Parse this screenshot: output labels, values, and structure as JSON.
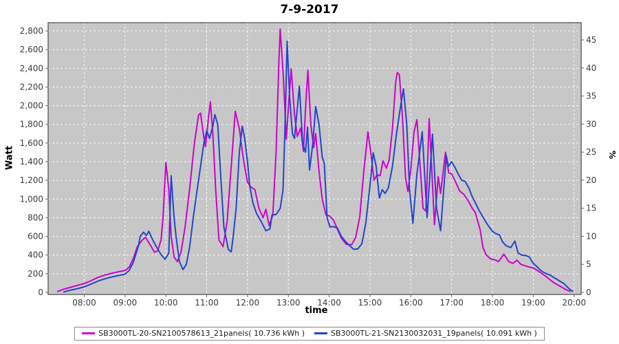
{
  "title": "7-9-2017",
  "chart_data": {
    "type": "line",
    "title": "7-9-2017",
    "xlabel": "time",
    "ylabel_left": "Watt",
    "ylabel_right": "%",
    "plot_bg": "#c7c7c7",
    "grid_color": "#ffffff",
    "border_color": "#666666",
    "tick_text_color": "#3b3b3b",
    "y_left_range": [
      0,
      2800
    ],
    "y_right_range": [
      0,
      45
    ],
    "x_domain_hours": [
      7.1,
      20.17
    ],
    "x_ticks": [
      [
        8,
        "08:00"
      ],
      [
        9,
        "09:00"
      ],
      [
        10,
        "10:00"
      ],
      [
        11,
        "11:00"
      ],
      [
        12,
        "12:00"
      ],
      [
        13,
        "13:00"
      ],
      [
        14,
        "14:00"
      ],
      [
        15,
        "15:00"
      ],
      [
        16,
        "16:00"
      ],
      [
        17,
        "17:00"
      ],
      [
        18,
        "18:00"
      ],
      [
        19,
        "19:00"
      ],
      [
        20,
        "20:00"
      ]
    ],
    "y_ticks_left": [
      [
        0,
        "0"
      ],
      [
        200,
        "200"
      ],
      [
        400,
        "400"
      ],
      [
        600,
        "600"
      ],
      [
        800,
        "800"
      ],
      [
        1000,
        "1,000"
      ],
      [
        1200,
        "1,200"
      ],
      [
        1400,
        "1,400"
      ],
      [
        1600,
        "1,600"
      ],
      [
        1800,
        "1,800"
      ],
      [
        2000,
        "2,000"
      ],
      [
        2200,
        "2,200"
      ],
      [
        2400,
        "2,400"
      ],
      [
        2600,
        "2,600"
      ],
      [
        2800,
        "2,800"
      ]
    ],
    "y_ticks_right": [
      [
        0,
        "0"
      ],
      [
        5,
        "5"
      ],
      [
        10,
        "10"
      ],
      [
        15,
        "15"
      ],
      [
        20,
        "20"
      ],
      [
        25,
        "25"
      ],
      [
        30,
        "30"
      ],
      [
        35,
        "35"
      ],
      [
        40,
        "40"
      ],
      [
        45,
        "45"
      ]
    ],
    "series": [
      {
        "name": "SB3000TL-20-SN2100578613_21panels( 10.736 kWh )",
        "color": "#cc00cc",
        "points": [
          [
            7.35,
            10
          ],
          [
            7.5,
            35
          ],
          [
            7.67,
            55
          ],
          [
            7.83,
            75
          ],
          [
            8.0,
            95
          ],
          [
            8.17,
            125
          ],
          [
            8.33,
            160
          ],
          [
            8.5,
            185
          ],
          [
            8.67,
            205
          ],
          [
            8.83,
            220
          ],
          [
            9.0,
            235
          ],
          [
            9.1,
            270
          ],
          [
            9.2,
            360
          ],
          [
            9.3,
            490
          ],
          [
            9.42,
            560
          ],
          [
            9.5,
            590
          ],
          [
            9.6,
            520
          ],
          [
            9.72,
            430
          ],
          [
            9.8,
            445
          ],
          [
            9.88,
            560
          ],
          [
            9.93,
            800
          ],
          [
            10.0,
            1390
          ],
          [
            10.07,
            1100
          ],
          [
            10.13,
            600
          ],
          [
            10.2,
            380
          ],
          [
            10.28,
            330
          ],
          [
            10.37,
            430
          ],
          [
            10.47,
            700
          ],
          [
            10.58,
            1100
          ],
          [
            10.7,
            1600
          ],
          [
            10.8,
            1900
          ],
          [
            10.85,
            1920
          ],
          [
            10.92,
            1690
          ],
          [
            10.97,
            1560
          ],
          [
            11.05,
            1900
          ],
          [
            11.09,
            2040
          ],
          [
            11.15,
            1700
          ],
          [
            11.22,
            1100
          ],
          [
            11.3,
            560
          ],
          [
            11.4,
            490
          ],
          [
            11.5,
            760
          ],
          [
            11.6,
            1350
          ],
          [
            11.7,
            1940
          ],
          [
            11.8,
            1750
          ],
          [
            11.9,
            1420
          ],
          [
            12.0,
            1180
          ],
          [
            12.08,
            1130
          ],
          [
            12.18,
            1100
          ],
          [
            12.28,
            900
          ],
          [
            12.38,
            800
          ],
          [
            12.45,
            890
          ],
          [
            12.53,
            715
          ],
          [
            12.62,
            830
          ],
          [
            12.7,
            1500
          ],
          [
            12.77,
            2500
          ],
          [
            12.8,
            2820
          ],
          [
            12.88,
            2300
          ],
          [
            12.95,
            1640
          ],
          [
            13.02,
            2100
          ],
          [
            13.07,
            2395
          ],
          [
            13.15,
            1900
          ],
          [
            13.22,
            1670
          ],
          [
            13.3,
            1760
          ],
          [
            13.37,
            1510
          ],
          [
            13.43,
            2050
          ],
          [
            13.48,
            2380
          ],
          [
            13.55,
            1800
          ],
          [
            13.62,
            1550
          ],
          [
            13.67,
            1700
          ],
          [
            13.75,
            1300
          ],
          [
            13.83,
            1000
          ],
          [
            13.92,
            830
          ],
          [
            14.0,
            820
          ],
          [
            14.1,
            780
          ],
          [
            14.2,
            680
          ],
          [
            14.3,
            580
          ],
          [
            14.42,
            515
          ],
          [
            14.55,
            510
          ],
          [
            14.65,
            590
          ],
          [
            14.75,
            810
          ],
          [
            14.85,
            1300
          ],
          [
            14.95,
            1720
          ],
          [
            15.02,
            1500
          ],
          [
            15.1,
            1200
          ],
          [
            15.17,
            1260
          ],
          [
            15.25,
            1250
          ],
          [
            15.32,
            1410
          ],
          [
            15.4,
            1330
          ],
          [
            15.47,
            1420
          ],
          [
            15.55,
            1750
          ],
          [
            15.63,
            2250
          ],
          [
            15.67,
            2355
          ],
          [
            15.72,
            2330
          ],
          [
            15.8,
            1850
          ],
          [
            15.87,
            1230
          ],
          [
            15.93,
            1080
          ],
          [
            16.0,
            1320
          ],
          [
            16.08,
            1720
          ],
          [
            16.15,
            1850
          ],
          [
            16.22,
            1400
          ],
          [
            16.3,
            900
          ],
          [
            16.37,
            870
          ],
          [
            16.45,
            1860
          ],
          [
            16.52,
            1250
          ],
          [
            16.58,
            725
          ],
          [
            16.67,
            1240
          ],
          [
            16.73,
            1060
          ],
          [
            16.85,
            1500
          ],
          [
            16.93,
            1280
          ],
          [
            17.0,
            1270
          ],
          [
            17.1,
            1180
          ],
          [
            17.2,
            1085
          ],
          [
            17.3,
            1050
          ],
          [
            17.4,
            985
          ],
          [
            17.5,
            905
          ],
          [
            17.58,
            855
          ],
          [
            17.7,
            670
          ],
          [
            17.77,
            480
          ],
          [
            17.85,
            400
          ],
          [
            17.95,
            360
          ],
          [
            18.05,
            350
          ],
          [
            18.15,
            330
          ],
          [
            18.28,
            410
          ],
          [
            18.4,
            330
          ],
          [
            18.5,
            310
          ],
          [
            18.6,
            345
          ],
          [
            18.7,
            300
          ],
          [
            18.8,
            285
          ],
          [
            18.9,
            272
          ],
          [
            19.0,
            262
          ],
          [
            19.1,
            235
          ],
          [
            19.2,
            205
          ],
          [
            19.3,
            175
          ],
          [
            19.4,
            140
          ],
          [
            19.5,
            105
          ],
          [
            19.6,
            80
          ],
          [
            19.7,
            55
          ],
          [
            19.8,
            30
          ],
          [
            19.9,
            12
          ]
        ]
      },
      {
        "name": "SB3000TL-21-SN2130032031_19panels( 10.091 kWh )",
        "color": "#2244cc",
        "points": [
          [
            7.5,
            5
          ],
          [
            7.67,
            25
          ],
          [
            7.83,
            40
          ],
          [
            8.0,
            60
          ],
          [
            8.17,
            90
          ],
          [
            8.33,
            120
          ],
          [
            8.5,
            145
          ],
          [
            8.67,
            165
          ],
          [
            8.83,
            180
          ],
          [
            9.0,
            195
          ],
          [
            9.1,
            235
          ],
          [
            9.2,
            320
          ],
          [
            9.33,
            500
          ],
          [
            9.37,
            600
          ],
          [
            9.45,
            645
          ],
          [
            9.52,
            610
          ],
          [
            9.58,
            655
          ],
          [
            9.68,
            560
          ],
          [
            9.78,
            480
          ],
          [
            9.88,
            405
          ],
          [
            9.98,
            355
          ],
          [
            10.07,
            420
          ],
          [
            10.13,
            1250
          ],
          [
            10.2,
            800
          ],
          [
            10.25,
            600
          ],
          [
            10.33,
            330
          ],
          [
            10.42,
            245
          ],
          [
            10.5,
            300
          ],
          [
            10.58,
            480
          ],
          [
            10.67,
            800
          ],
          [
            10.75,
            1050
          ],
          [
            10.85,
            1350
          ],
          [
            10.93,
            1600
          ],
          [
            11.0,
            1730
          ],
          [
            11.07,
            1650
          ],
          [
            11.15,
            1780
          ],
          [
            11.2,
            1905
          ],
          [
            11.27,
            1800
          ],
          [
            11.33,
            1350
          ],
          [
            11.42,
            700
          ],
          [
            11.53,
            460
          ],
          [
            11.6,
            435
          ],
          [
            11.65,
            600
          ],
          [
            11.72,
            900
          ],
          [
            11.8,
            1500
          ],
          [
            11.87,
            1780
          ],
          [
            11.93,
            1650
          ],
          [
            12.0,
            1400
          ],
          [
            12.05,
            1150
          ],
          [
            12.13,
            960
          ],
          [
            12.22,
            845
          ],
          [
            12.32,
            770
          ],
          [
            12.45,
            660
          ],
          [
            12.55,
            680
          ],
          [
            12.6,
            830
          ],
          [
            12.7,
            835
          ],
          [
            12.8,
            900
          ],
          [
            12.87,
            1100
          ],
          [
            12.92,
            1800
          ],
          [
            12.97,
            2690
          ],
          [
            13.03,
            2100
          ],
          [
            13.1,
            1700
          ],
          [
            13.15,
            1650
          ],
          [
            13.27,
            2210
          ],
          [
            13.35,
            1600
          ],
          [
            13.42,
            1500
          ],
          [
            13.47,
            1770
          ],
          [
            13.52,
            1310
          ],
          [
            13.6,
            1600
          ],
          [
            13.67,
            1990
          ],
          [
            13.75,
            1800
          ],
          [
            13.83,
            1450
          ],
          [
            13.88,
            1380
          ],
          [
            13.95,
            800
          ],
          [
            14.02,
            700
          ],
          [
            14.1,
            705
          ],
          [
            14.2,
            690
          ],
          [
            14.3,
            600
          ],
          [
            14.4,
            545
          ],
          [
            14.5,
            500
          ],
          [
            14.6,
            462
          ],
          [
            14.7,
            465
          ],
          [
            14.8,
            520
          ],
          [
            14.9,
            750
          ],
          [
            15.0,
            1150
          ],
          [
            15.08,
            1495
          ],
          [
            15.15,
            1350
          ],
          [
            15.23,
            1010
          ],
          [
            15.3,
            1100
          ],
          [
            15.37,
            1060
          ],
          [
            15.45,
            1120
          ],
          [
            15.55,
            1350
          ],
          [
            15.65,
            1700
          ],
          [
            15.75,
            2000
          ],
          [
            15.82,
            2180
          ],
          [
            15.9,
            1800
          ],
          [
            15.97,
            1100
          ],
          [
            16.05,
            740
          ],
          [
            16.15,
            1270
          ],
          [
            16.28,
            1720
          ],
          [
            16.4,
            800
          ],
          [
            16.53,
            1695
          ],
          [
            16.63,
            900
          ],
          [
            16.73,
            660
          ],
          [
            16.87,
            1465
          ],
          [
            16.92,
            1350
          ],
          [
            17.0,
            1400
          ],
          [
            17.08,
            1340
          ],
          [
            17.17,
            1260
          ],
          [
            17.25,
            1200
          ],
          [
            17.33,
            1190
          ],
          [
            17.42,
            1120
          ],
          [
            17.5,
            1030
          ],
          [
            17.58,
            960
          ],
          [
            17.67,
            880
          ],
          [
            17.75,
            820
          ],
          [
            17.83,
            760
          ],
          [
            17.92,
            700
          ],
          [
            18.0,
            655
          ],
          [
            18.08,
            630
          ],
          [
            18.17,
            615
          ],
          [
            18.25,
            540
          ],
          [
            18.33,
            500
          ],
          [
            18.45,
            480
          ],
          [
            18.55,
            550
          ],
          [
            18.63,
            420
          ],
          [
            18.72,
            400
          ],
          [
            18.82,
            395
          ],
          [
            18.9,
            380
          ],
          [
            19.0,
            310
          ],
          [
            19.08,
            280
          ],
          [
            19.17,
            240
          ],
          [
            19.25,
            215
          ],
          [
            19.33,
            200
          ],
          [
            19.42,
            185
          ],
          [
            19.5,
            160
          ],
          [
            19.58,
            140
          ],
          [
            19.67,
            115
          ],
          [
            19.75,
            95
          ],
          [
            19.83,
            60
          ],
          [
            19.9,
            30
          ],
          [
            19.97,
            10
          ]
        ]
      }
    ]
  },
  "legend": {
    "item1": "SB3000TL-20-SN2100578613_21panels( 10.736 kWh )",
    "item2": "SB3000TL-21-SN2130032031_19panels( 10.091 kWh )"
  },
  "axis_labels": {
    "left": "Watt",
    "right": "%",
    "bottom": "time"
  }
}
